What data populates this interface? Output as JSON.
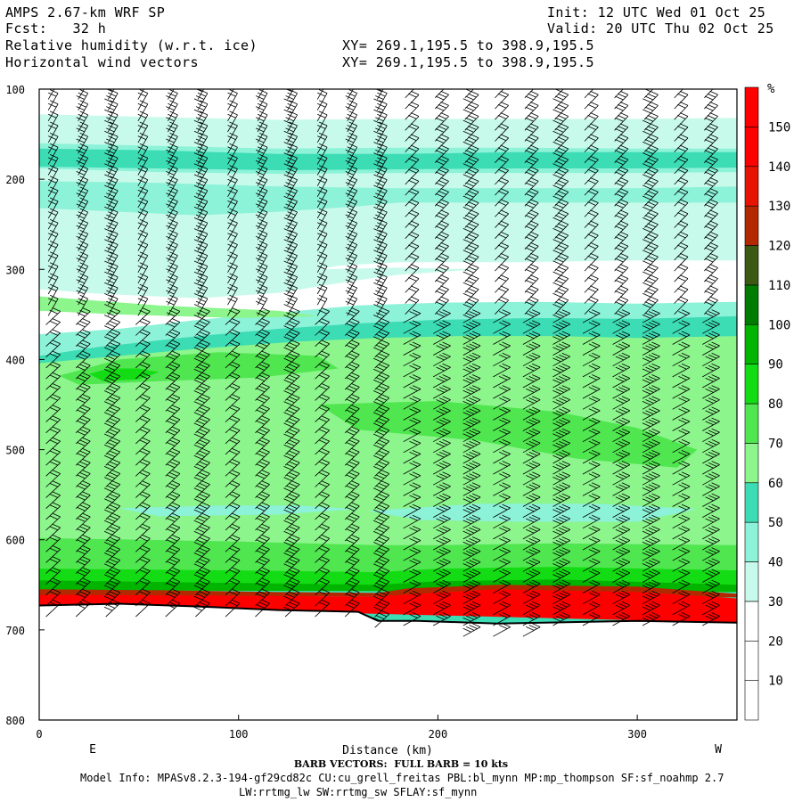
{
  "header": {
    "model": "AMPS 2.67-km WRF SP",
    "init": "Init: 12 UTC Wed 01 Oct 25",
    "fcst": "Fcst:   32 h",
    "valid": "Valid: 20 UTC Thu 02 Oct 25",
    "field1": "Relative humidity (w.r.t. ice)",
    "field2": "Horizontal wind vectors",
    "xy1": "XY= 269.1,195.5 to 398.9,195.5",
    "xy2": "XY= 269.1,195.5 to 398.9,195.5"
  },
  "chart_data": {
    "type": "heatmap",
    "title": "Relative humidity (w.r.t. ice)",
    "xlabel": "Distance (km)",
    "ylabel": "",
    "xlim": [
      0,
      350
    ],
    "ylim": [
      800,
      100
    ],
    "x_ticks": [
      "0",
      "100",
      "200",
      "300"
    ],
    "y_ticks": [
      "100",
      "200",
      "300",
      "400",
      "500",
      "600",
      "700",
      "800"
    ],
    "x_end_labels": {
      "left": "E",
      "right": "W"
    },
    "colorbar": {
      "unit": "%",
      "labels": [
        "10",
        "20",
        "30",
        "40",
        "50",
        "60",
        "70",
        "80",
        "90",
        "100",
        "110",
        "120",
        "130",
        "140",
        "150"
      ],
      "colors": [
        "#ffffff",
        "#ffffff",
        "#ffffff",
        "#c8faeb",
        "#8cf2d8",
        "#3cdcb4",
        "#8cf58c",
        "#50e650",
        "#14dc14",
        "#00b400",
        "#007d00",
        "#3c5a14",
        "#b42800",
        "#e61400",
        "#ff0000",
        "#ff0000"
      ]
    },
    "bands": [
      {
        "min": 30,
        "color": "#c8faeb",
        "top": [
          [
            0,
            128
          ],
          [
            60,
            131
          ],
          [
            120,
            134
          ],
          [
            180,
            133
          ],
          [
            240,
            133
          ],
          [
            300,
            133
          ],
          [
            350,
            132
          ]
        ],
        "bottom": [
          [
            0,
            322
          ],
          [
            30,
            327
          ],
          [
            80,
            332
          ],
          [
            120,
            326
          ],
          [
            160,
            312
          ],
          [
            180,
            306
          ],
          [
            220,
            300
          ],
          [
            270,
            302
          ],
          [
            310,
            303
          ],
          [
            350,
            300
          ]
        ]
      },
      {
        "min": 40,
        "color": "#8cf2d8",
        "top": [
          [
            0,
            160
          ],
          [
            60,
            163
          ],
          [
            120,
            166
          ],
          [
            180,
            165
          ],
          [
            240,
            165
          ],
          [
            300,
            166
          ],
          [
            350,
            166
          ]
        ],
        "bottom": [
          [
            0,
            188
          ],
          [
            60,
            192
          ],
          [
            120,
            194
          ],
          [
            180,
            193
          ],
          [
            240,
            193
          ],
          [
            300,
            193
          ],
          [
            350,
            192
          ]
        ]
      },
      {
        "min": 40,
        "color": "#8cf2d8",
        "top": [
          [
            0,
            202
          ],
          [
            60,
            204
          ],
          [
            120,
            208
          ],
          [
            180,
            210
          ],
          [
            240,
            210
          ],
          [
            300,
            210
          ],
          [
            350,
            208
          ]
        ],
        "bottom": [
          [
            0,
            232
          ],
          [
            40,
            236
          ],
          [
            80,
            240
          ],
          [
            120,
            236
          ],
          [
            160,
            230
          ],
          [
            180,
            226
          ],
          [
            240,
            226
          ],
          [
            300,
            226
          ],
          [
            350,
            226
          ]
        ]
      },
      {
        "min": 50,
        "color": "#3cdcb4",
        "top": [
          [
            0,
            166
          ],
          [
            60,
            168
          ],
          [
            120,
            172
          ],
          [
            180,
            172
          ],
          [
            240,
            170
          ],
          [
            300,
            170
          ],
          [
            350,
            170
          ]
        ],
        "bottom": [
          [
            0,
            186
          ],
          [
            60,
            188
          ],
          [
            120,
            190
          ],
          [
            180,
            189
          ],
          [
            240,
            188
          ],
          [
            300,
            188
          ],
          [
            350,
            187
          ]
        ]
      },
      {
        "min": 40,
        "color": "#8cf2d8",
        "top": [
          [
            0,
            372
          ],
          [
            40,
            366
          ],
          [
            80,
            356
          ],
          [
            120,
            348
          ],
          [
            160,
            340
          ],
          [
            200,
            337
          ],
          [
            250,
            336
          ],
          [
            300,
            338
          ],
          [
            350,
            336
          ]
        ],
        "bottom": [
          [
            0,
            698
          ],
          [
            350,
            698
          ]
        ]
      },
      {
        "min": 50,
        "color": "#3cdcb4",
        "top": [
          [
            0,
            396
          ],
          [
            30,
            386
          ],
          [
            80,
            374
          ],
          [
            120,
            366
          ],
          [
            160,
            360
          ],
          [
            200,
            356
          ],
          [
            250,
            354
          ],
          [
            300,
            355
          ],
          [
            350,
            352
          ]
        ],
        "bottom": [
          [
            0,
            698
          ],
          [
            350,
            698
          ]
        ]
      },
      {
        "min": 60,
        "color": "#8cf58c",
        "top": [
          [
            0,
            404
          ],
          [
            30,
            398
          ],
          [
            80,
            388
          ],
          [
            130,
            380
          ],
          [
            170,
            376
          ],
          [
            210,
            374
          ],
          [
            260,
            374
          ],
          [
            300,
            376
          ],
          [
            350,
            374
          ]
        ],
        "bottom": [
          [
            0,
            642
          ],
          [
            100,
            646
          ],
          [
            170,
            648
          ],
          [
            200,
            646
          ],
          [
            260,
            646
          ],
          [
            350,
            648
          ]
        ]
      },
      {
        "min": 70,
        "color": "#50e650",
        "top": [
          [
            0,
            598
          ],
          [
            100,
            602
          ],
          [
            170,
            606
          ],
          [
            200,
            606
          ],
          [
            260,
            604
          ],
          [
            350,
            606
          ]
        ],
        "bottom": [
          [
            0,
            648
          ],
          [
            350,
            650
          ]
        ]
      },
      {
        "min": 80,
        "color": "#14dc14",
        "top": [
          [
            0,
            632
          ],
          [
            100,
            634
          ],
          [
            170,
            636
          ],
          [
            200,
            632
          ],
          [
            260,
            630
          ],
          [
            350,
            634
          ]
        ],
        "bottom": [
          [
            0,
            652
          ],
          [
            350,
            654
          ]
        ]
      },
      {
        "min": 90,
        "color": "#00b400",
        "top": [
          [
            0,
            645
          ],
          [
            100,
            648
          ],
          [
            170,
            650
          ],
          [
            200,
            646
          ],
          [
            260,
            644
          ],
          [
            350,
            650
          ]
        ],
        "bottom": [
          [
            0,
            656
          ],
          [
            350,
            658
          ]
        ]
      },
      {
        "min": 120,
        "color": "#b42800",
        "top": [
          [
            0,
            655
          ],
          [
            60,
            656
          ],
          [
            120,
            658
          ],
          [
            170,
            659
          ],
          [
            185,
            654
          ],
          [
            230,
            650
          ],
          [
            300,
            652
          ],
          [
            350,
            660
          ]
        ],
        "bottom": [
          [
            0,
            662
          ],
          [
            350,
            664
          ]
        ]
      },
      {
        "min": 140,
        "color": "#ff0000",
        "top": [
          [
            0,
            661
          ],
          [
            80,
            662
          ],
          [
            170,
            663
          ],
          [
            190,
            660
          ],
          [
            230,
            655
          ],
          [
            300,
            658
          ],
          [
            350,
            665
          ]
        ],
        "bottom": [
          [
            0,
            673
          ],
          [
            350,
            692
          ]
        ]
      }
    ],
    "blobs": [
      {
        "min": 70,
        "color": "#50e650",
        "pts": [
          [
            10,
            418
          ],
          [
            40,
            400
          ],
          [
            90,
            392
          ],
          [
            140,
            396
          ],
          [
            150,
            410
          ],
          [
            110,
            420
          ],
          [
            60,
            424
          ],
          [
            20,
            428
          ]
        ]
      },
      {
        "min": 80,
        "color": "#14dc14",
        "pts": [
          [
            25,
            416
          ],
          [
            35,
            410
          ],
          [
            50,
            410
          ],
          [
            60,
            414
          ],
          [
            50,
            422
          ],
          [
            32,
            424
          ]
        ]
      },
      {
        "min": 70,
        "color": "#50e650",
        "pts": [
          [
            140,
            450
          ],
          [
            200,
            446
          ],
          [
            260,
            458
          ],
          [
            300,
            476
          ],
          [
            330,
            500
          ],
          [
            320,
            520
          ],
          [
            270,
            510
          ],
          [
            220,
            490
          ],
          [
            160,
            478
          ]
        ]
      },
      {
        "min": 60,
        "color": "#8cf58c",
        "pts": [
          [
            0,
            330
          ],
          [
            60,
            340
          ],
          [
            120,
            346
          ],
          [
            140,
            352
          ],
          [
            100,
            354
          ],
          [
            40,
            350
          ],
          [
            0,
            346
          ]
        ]
      },
      {
        "min": 40,
        "color": "#8cf2d8",
        "pts": [
          [
            40,
            565
          ],
          [
            90,
            562
          ],
          [
            130,
            562
          ],
          [
            160,
            566
          ],
          [
            120,
            572
          ],
          [
            60,
            574
          ]
        ]
      },
      {
        "min": 40,
        "color": "#8cf2d8",
        "pts": [
          [
            165,
            568
          ],
          [
            220,
            560
          ],
          [
            280,
            560
          ],
          [
            330,
            566
          ],
          [
            300,
            580
          ],
          [
            240,
            580
          ],
          [
            190,
            578
          ]
        ]
      },
      {
        "min": 20,
        "color": "#ffffff",
        "pts": [
          [
            140,
            300
          ],
          [
            180,
            298
          ],
          [
            220,
            300
          ],
          [
            270,
            302
          ],
          [
            310,
            303
          ],
          [
            350,
            300
          ],
          [
            350,
            290
          ],
          [
            300,
            290
          ],
          [
            240,
            292
          ],
          [
            180,
            292
          ],
          [
            150,
            296
          ]
        ]
      }
    ],
    "terrain_surface": [
      [
        0,
        673
      ],
      [
        40,
        671
      ],
      [
        80,
        674
      ],
      [
        120,
        678
      ],
      [
        160,
        680
      ],
      [
        170,
        690
      ],
      [
        190,
        690
      ],
      [
        230,
        693
      ],
      [
        300,
        690
      ],
      [
        350,
        692
      ]
    ],
    "barbs": {
      "columns_km": [
        7,
        22,
        37,
        52,
        67,
        82,
        97,
        112,
        127,
        142,
        157,
        172,
        187,
        202,
        217,
        232,
        247,
        262,
        277,
        292,
        307,
        322,
        337
      ],
      "levels_hpa_step": 12,
      "full_barb_kts": 10
    }
  },
  "axes": {
    "xlabel": "Distance (km)",
    "barb_note": "BARB VECTORS:  FULL BARB = 10 kts"
  },
  "footer": {
    "line1": "Model Info: MPASv8.2.3-194-gf29cd82c CU:cu_grell_freitas PBL:bl_mynn MP:mp_thompson SF:sf_noahmp 2.7",
    "line2": "LW:rrtmg_lw SW:rrtmg_sw SFLAY:sf_mynn"
  }
}
